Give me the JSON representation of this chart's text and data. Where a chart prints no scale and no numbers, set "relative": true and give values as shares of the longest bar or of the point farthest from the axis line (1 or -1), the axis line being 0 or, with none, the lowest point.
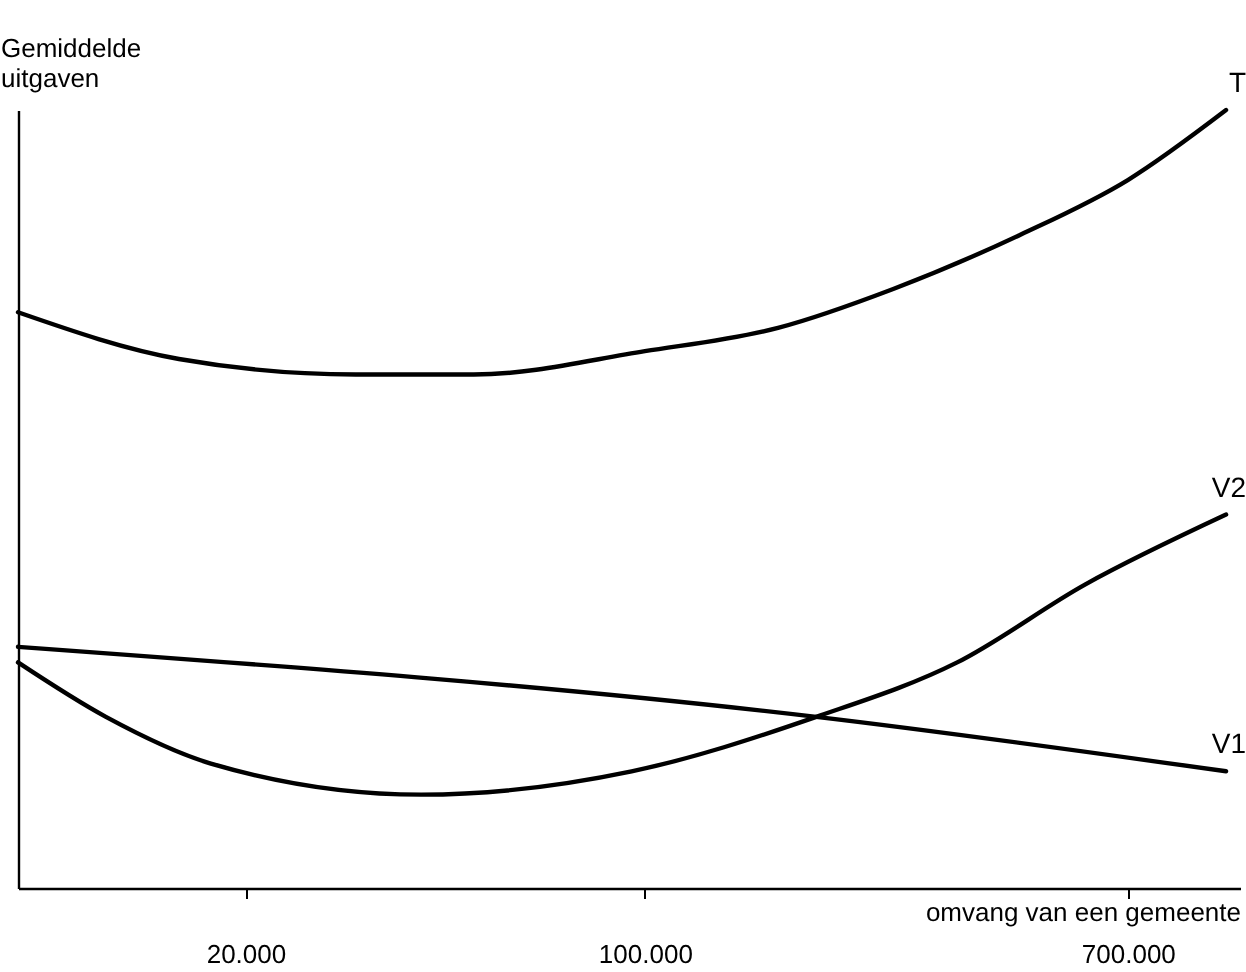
{
  "chart_data": {
    "type": "line",
    "relative": true,
    "ylabel": "Gemiddelde\nuitgaven",
    "xlabel": "omvang van een gemeente",
    "log": "x",
    "legend": false,
    "grid": false,
    "marker": "none",
    "line_style": "solid",
    "xlim": [
      8000,
      1100000
    ],
    "xticks": [
      {
        "value": 20000,
        "label": "20.000"
      },
      {
        "value": 100000,
        "label": "100.000"
      },
      {
        "value": 700000,
        "label": "700.000"
      }
    ],
    "series": [
      {
        "name": "T",
        "color": "#000000",
        "x": [
          8000,
          15300,
          31200,
          50200,
          100000,
          171000,
          272000,
          455000,
          700000,
          1040000
        ],
        "values": [
          0.74,
          0.68,
          0.66,
          0.66,
          0.69,
          0.72,
          0.77,
          0.84,
          0.91,
          1.0
        ]
      },
      {
        "name": "V2",
        "color": "#000000",
        "x": [
          8000,
          11400,
          17400,
          40600,
          94800,
          199500,
          352000,
          589000,
          1040000
        ],
        "values": [
          0.29,
          0.22,
          0.16,
          0.12,
          0.15,
          0.22,
          0.29,
          0.39,
          0.48
        ]
      },
      {
        "name": "V1",
        "color": "#000000",
        "x": [
          8000,
          199500,
          1040000
        ],
        "values": [
          0.31,
          0.22,
          0.15
        ]
      }
    ]
  }
}
